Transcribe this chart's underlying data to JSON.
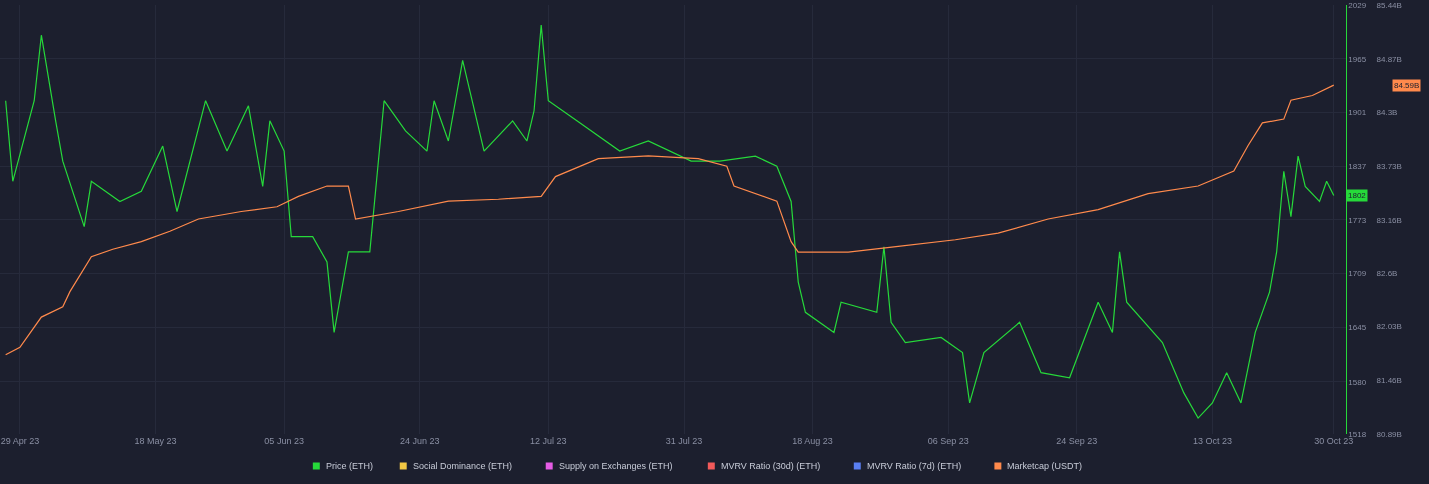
{
  "chart_data": {
    "type": "line",
    "xlim": [
      "2023-04-26T05:00",
      "2023-10-31T16:00"
    ],
    "xticks": [
      {
        "value": "2023-04-29",
        "label": "29 Apr 23"
      },
      {
        "value": "2023-05-18",
        "label": "18 May 23"
      },
      {
        "value": "2023-06-05",
        "label": "05 Jun 23"
      },
      {
        "value": "2023-06-24",
        "label": "24 Jun 23"
      },
      {
        "value": "2023-07-12",
        "label": "12 Jul 23"
      },
      {
        "value": "2023-07-31",
        "label": "31 Jul 23"
      },
      {
        "value": "2023-08-18",
        "label": "18 Aug 23"
      },
      {
        "value": "2023-09-06",
        "label": "06 Sep 23"
      },
      {
        "value": "2023-09-24",
        "label": "24 Sep 23"
      },
      {
        "value": "2023-10-13",
        "label": "13 Oct 23"
      },
      {
        "value": "2023-10-30",
        "label": "30 Oct 23"
      }
    ],
    "ylim": [
      1518,
      2029
    ],
    "yticks": [
      1518,
      1580,
      1645,
      1709,
      1773,
      1837,
      1901,
      1965,
      2029
    ],
    "y2lim": [
      80.89,
      85.44
    ],
    "y2ticks": [
      {
        "value": 80.89,
        "label": "80.89B"
      },
      {
        "value": 81.46,
        "label": "81.46B"
      },
      {
        "value": 82.03,
        "label": "82.03B"
      },
      {
        "value": 82.6,
        "label": "82.6B"
      },
      {
        "value": 83.16,
        "label": "83.16B"
      },
      {
        "value": 83.73,
        "label": "83.73B"
      },
      {
        "value": 84.3,
        "label": "84.3B"
      },
      {
        "value": 84.87,
        "label": "84.87B"
      },
      {
        "value": 85.44,
        "label": "85.44B"
      }
    ],
    "grid": true,
    "legend": "bottom",
    "annotations": [
      "1802",
      "84.59B"
    ],
    "series": [
      {
        "name": "Price (ETH)",
        "color": "#26d93a",
        "x": [
          "2023-04-27",
          "2023-04-28",
          "2023-05-01",
          "2023-05-02",
          "2023-05-04",
          "2023-05-05",
          "2023-05-08",
          "2023-05-09",
          "2023-05-13",
          "2023-05-16",
          "2023-05-19",
          "2023-05-21",
          "2023-05-25",
          "2023-05-28",
          "2023-05-31",
          "2023-06-02",
          "2023-06-03",
          "2023-06-05",
          "2023-06-06",
          "2023-06-09",
          "2023-06-11",
          "2023-06-12",
          "2023-06-14",
          "2023-06-17",
          "2023-06-19",
          "2023-06-22",
          "2023-06-25",
          "2023-06-26",
          "2023-06-28",
          "2023-06-30",
          "2023-07-03",
          "2023-07-07",
          "2023-07-09",
          "2023-07-10",
          "2023-07-11",
          "2023-07-12",
          "2023-07-16",
          "2023-07-22",
          "2023-07-26",
          "2023-08-01",
          "2023-08-05",
          "2023-08-10",
          "2023-08-13",
          "2023-08-15",
          "2023-08-16",
          "2023-08-17",
          "2023-08-21",
          "2023-08-22",
          "2023-08-27",
          "2023-08-28",
          "2023-08-29",
          "2023-08-31",
          "2023-09-05",
          "2023-09-08",
          "2023-09-09",
          "2023-09-11",
          "2023-09-16",
          "2023-09-19",
          "2023-09-23",
          "2023-09-27",
          "2023-09-29",
          "2023-09-30",
          "2023-10-01",
          "2023-10-06",
          "2023-10-09",
          "2023-10-11",
          "2023-10-13",
          "2023-10-15",
          "2023-10-17",
          "2023-10-19",
          "2023-10-21",
          "2023-10-22",
          "2023-10-23",
          "2023-10-24",
          "2023-10-25",
          "2023-10-26",
          "2023-10-28",
          "2023-10-29",
          "2023-10-30"
        ],
        "values": [
          1915,
          1819,
          1915,
          1993,
          1891,
          1843,
          1765,
          1819,
          1795,
          1807,
          1861,
          1783,
          1915,
          1855,
          1909,
          1813,
          1891,
          1855,
          1753,
          1753,
          1723,
          1639,
          1735,
          1735,
          1915,
          1879,
          1855,
          1915,
          1867,
          1963,
          1855,
          1891,
          1867,
          1903,
          2005,
          1915,
          1891,
          1855,
          1867,
          1843,
          1843,
          1849,
          1837,
          1795,
          1699,
          1663,
          1639,
          1675,
          1663,
          1741,
          1651,
          1627,
          1633,
          1615,
          1555,
          1615,
          1651,
          1591,
          1585,
          1675,
          1639,
          1735,
          1675,
          1627,
          1567,
          1537,
          1555,
          1591,
          1555,
          1639,
          1687,
          1735,
          1831,
          1777,
          1849,
          1813,
          1795,
          1819,
          1802
        ]
      },
      {
        "name": "Social Dominance (ETH)",
        "color": "#f2c744"
      },
      {
        "name": "Supply on Exchanges (ETH)",
        "color": "#e65ce6"
      },
      {
        "name": "MVRV Ratio (30d) (ETH)",
        "color": "#f25a5a"
      },
      {
        "name": "MVRV Ratio (7d) (ETH)",
        "color": "#5a7ff2"
      },
      {
        "name": "Marketcap (USDT)",
        "color": "#ff8a4c",
        "axis": "y2",
        "x": [
          "2023-04-27",
          "2023-04-29",
          "2023-05-02",
          "2023-05-05",
          "2023-05-06",
          "2023-05-09",
          "2023-05-12",
          "2023-05-16",
          "2023-05-20",
          "2023-05-24",
          "2023-05-30",
          "2023-06-04",
          "2023-06-07",
          "2023-06-11",
          "2023-06-14",
          "2023-06-15",
          "2023-06-21",
          "2023-06-28",
          "2023-07-05",
          "2023-07-11",
          "2023-07-13",
          "2023-07-19",
          "2023-07-26",
          "2023-08-02",
          "2023-08-06",
          "2023-08-07",
          "2023-08-13",
          "2023-08-15",
          "2023-08-16",
          "2023-08-23",
          "2023-08-30",
          "2023-09-07",
          "2023-09-13",
          "2023-09-20",
          "2023-09-27",
          "2023-10-04",
          "2023-10-11",
          "2023-10-16",
          "2023-10-18",
          "2023-10-20",
          "2023-10-23",
          "2023-10-24",
          "2023-10-27",
          "2023-10-30"
        ],
        "values": [
          81.73,
          81.81,
          82.13,
          82.24,
          82.4,
          82.77,
          82.85,
          82.93,
          83.04,
          83.17,
          83.25,
          83.3,
          83.41,
          83.52,
          83.52,
          83.17,
          83.25,
          83.36,
          83.38,
          83.41,
          83.62,
          83.81,
          83.84,
          83.81,
          83.73,
          83.52,
          83.36,
          82.93,
          82.82,
          82.82,
          82.88,
          82.95,
          83.02,
          83.17,
          83.27,
          83.44,
          83.52,
          83.68,
          83.95,
          84.19,
          84.23,
          84.43,
          84.48,
          84.59
        ]
      }
    ]
  }
}
